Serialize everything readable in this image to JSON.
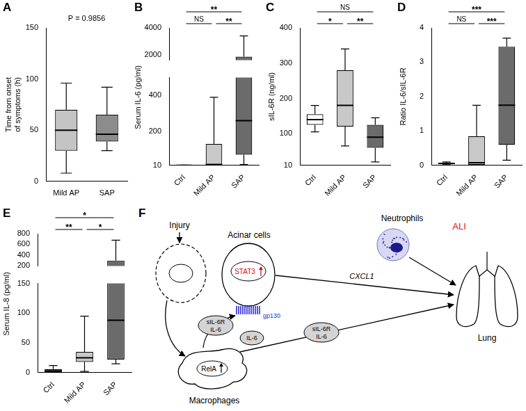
{
  "chart_data": [
    {
      "panel": "A",
      "type": "box",
      "ylabel": [
        "Time from onset",
        "of symptoms (h)"
      ],
      "categories": [
        "Mild AP",
        "SAP"
      ],
      "boxes": [
        {
          "min": 8,
          "q1": 30,
          "median": 50,
          "q3": 70,
          "max": 96
        },
        {
          "min": 30,
          "q1": 39,
          "median": 46,
          "q3": 65,
          "max": 92
        }
      ],
      "colors": [
        "#c4c4c4",
        "#8c8c8c"
      ],
      "ylim": [
        0,
        150
      ],
      "yticks": [
        0,
        50,
        100,
        150
      ],
      "grid": false,
      "annotations": [
        "P = 0.9856"
      ]
    },
    {
      "panel": "B",
      "type": "box",
      "ylabel": [
        "Serum IL-6 (pg/ml)"
      ],
      "categories": [
        "Ctrl",
        "Mild AP",
        "SAP"
      ],
      "boxes": [
        {
          "min": 10,
          "q1": 10,
          "median": 10.5,
          "q3": 11,
          "max": 12
        },
        {
          "min": 10,
          "q1": 11,
          "median": 15,
          "q3": 130,
          "max": 390
        },
        {
          "min": 15,
          "q1": 70,
          "median": 260,
          "q3": 1850,
          "max": 3400
        }
      ],
      "colors": [
        "#ffffff",
        "#c8c8c8",
        "#6b6b6b"
      ],
      "ylim": [
        10,
        4000
      ],
      "y_break": [
        500,
        1600
      ],
      "yticks": [
        10,
        200,
        400,
        2000,
        4000
      ],
      "grid": false,
      "significance": [
        {
          "between": [
            "Ctrl",
            "Mild AP"
          ],
          "label": "NS"
        },
        {
          "between": [
            "Ctrl",
            "SAP"
          ],
          "label": "**"
        },
        {
          "between": [
            "Mild AP",
            "SAP"
          ],
          "label": "**"
        }
      ]
    },
    {
      "panel": "C",
      "type": "box",
      "ylabel": [
        "sIL-6R (ng/ml)"
      ],
      "categories": [
        "Ctrl",
        "Mild AP",
        "SAP"
      ],
      "boxes": [
        {
          "min": 105,
          "q1": 125,
          "median": 140,
          "q3": 155,
          "max": 180
        },
        {
          "min": 65,
          "q1": 120,
          "median": 180,
          "q3": 280,
          "max": 340
        },
        {
          "min": 20,
          "q1": 60,
          "median": 90,
          "q3": 125,
          "max": 145
        }
      ],
      "colors": [
        "#ffffff",
        "#c8c8c8",
        "#6b6b6b"
      ],
      "ylim": [
        10,
        400
      ],
      "yticks": [
        10,
        100,
        200,
        300,
        400
      ],
      "grid": false,
      "significance": [
        {
          "between": [
            "Ctrl",
            "Mild AP"
          ],
          "label": "*"
        },
        {
          "between": [
            "Ctrl",
            "SAP"
          ],
          "label": "NS"
        },
        {
          "between": [
            "Mild AP",
            "SAP"
          ],
          "label": "**"
        }
      ]
    },
    {
      "panel": "D",
      "type": "box",
      "ylabel": [
        "Ratio IL-6/sIL-6R"
      ],
      "categories": [
        "Ctrl",
        "Mild AP",
        "SAP"
      ],
      "boxes": [
        {
          "min": 0.02,
          "q1": 0.04,
          "median": 0.06,
          "q3": 0.08,
          "max": 0.1
        },
        {
          "min": 0,
          "q1": 0.02,
          "median": 0.08,
          "q3": 0.85,
          "max": 1.75
        },
        {
          "min": 0.15,
          "q1": 0.6,
          "median": 1.75,
          "q3": 3.45,
          "max": 3.7
        }
      ],
      "colors": [
        "#ffffff",
        "#c8c8c8",
        "#6b6b6b"
      ],
      "ylim": [
        0,
        4
      ],
      "yticks": [
        0,
        1,
        2,
        3,
        4
      ],
      "grid": false,
      "significance": [
        {
          "between": [
            "Ctrl",
            "Mild AP"
          ],
          "label": "NS"
        },
        {
          "between": [
            "Ctrl",
            "SAP"
          ],
          "label": "***"
        },
        {
          "between": [
            "Mild AP",
            "SAP"
          ],
          "label": "***"
        }
      ]
    },
    {
      "panel": "E",
      "type": "box",
      "ylabel": [
        "Serum IL-8 (pg/ml)"
      ],
      "categories": [
        "Ctrl",
        "Mild AP",
        "SAP"
      ],
      "boxes": [
        {
          "min": 0,
          "q1": 1,
          "median": 3,
          "q3": 6,
          "max": 12
        },
        {
          "min": 2,
          "q1": 18,
          "median": 25,
          "q3": 35,
          "max": 95
        },
        {
          "min": 15,
          "q1": 22,
          "median": 88,
          "q3": 300,
          "max": 680
        }
      ],
      "colors": [
        "#ffffff",
        "#c8c8c8",
        "#6b6b6b"
      ],
      "ylim": [
        0,
        800
      ],
      "y_break": [
        150,
        200
      ],
      "yticks": [
        0,
        50,
        100,
        150,
        200,
        400,
        600,
        800
      ],
      "grid": false,
      "significance": [
        {
          "between": [
            "Ctrl",
            "Mild AP"
          ],
          "label": "**"
        },
        {
          "between": [
            "Ctrl",
            "SAP"
          ],
          "label": "*"
        },
        {
          "between": [
            "Mild AP",
            "SAP"
          ],
          "label": "*"
        }
      ]
    }
  ],
  "diagram": {
    "panel": "F",
    "injury": "Injury",
    "acinar_cells": "Acinar cells",
    "stat3": "STAT3",
    "gp130": "gp130",
    "cxcl1": "CXCL1",
    "neutrophils": "Neutrophils",
    "ali": "ALI",
    "lung": "Lung",
    "complex_1": [
      "sIL-6R",
      "IL-6"
    ],
    "complex_2": [
      "sIL-6R",
      "IL-6"
    ],
    "il6": "IL-6",
    "rela": "RelA",
    "macrophages": "Macrophages"
  }
}
